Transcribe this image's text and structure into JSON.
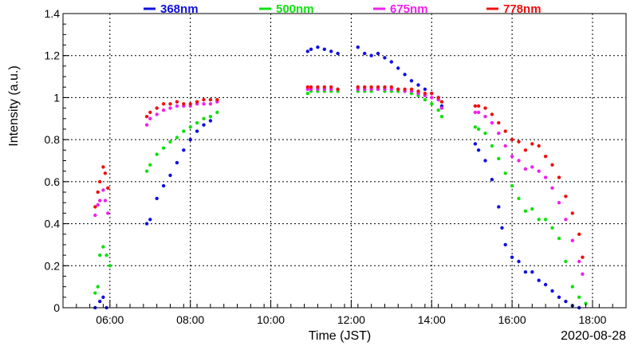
{
  "chart_data": {
    "type": "scatter",
    "title": "",
    "xlabel": "Time (JST)",
    "ylabel": "Intensity (a.u.)",
    "date_label": "2020-08-28",
    "xlim": [
      "04:50",
      "18:50"
    ],
    "ylim": [
      0,
      1.4
    ],
    "x_ticks": [
      "06:00",
      "08:00",
      "10:00",
      "12:00",
      "14:00",
      "16:00",
      "18:00"
    ],
    "y_ticks": [
      "0",
      "0.2",
      "0.4",
      "0.6",
      "0.8",
      "1",
      "1.2",
      "1.4"
    ],
    "grid": true,
    "legend_position": "top",
    "series": [
      {
        "name": "368nm",
        "color": "#1010e0",
        "points": [
          [
            "05:38",
            0.0
          ],
          [
            "05:45",
            0.03
          ],
          [
            "05:50",
            0.05
          ],
          [
            "05:55",
            0.0
          ],
          [
            "06:55",
            0.4
          ],
          [
            "07:00",
            0.42
          ],
          [
            "07:10",
            0.52
          ],
          [
            "07:20",
            0.58
          ],
          [
            "07:30",
            0.63
          ],
          [
            "07:40",
            0.69
          ],
          [
            "07:50",
            0.75
          ],
          [
            "08:00",
            0.8
          ],
          [
            "08:10",
            0.84
          ],
          [
            "08:20",
            0.87
          ],
          [
            "08:30",
            0.89
          ],
          [
            "10:55",
            1.22
          ],
          [
            "11:00",
            1.23
          ],
          [
            "11:10",
            1.24
          ],
          [
            "11:20",
            1.23
          ],
          [
            "11:30",
            1.22
          ],
          [
            "11:40",
            1.21
          ],
          [
            "12:10",
            1.24
          ],
          [
            "12:20",
            1.21
          ],
          [
            "12:30",
            1.2
          ],
          [
            "12:40",
            1.21
          ],
          [
            "12:50",
            1.19
          ],
          [
            "13:00",
            1.17
          ],
          [
            "13:10",
            1.14
          ],
          [
            "13:20",
            1.11
          ],
          [
            "13:30",
            1.08
          ],
          [
            "13:40",
            1.06
          ],
          [
            "13:50",
            1.04
          ],
          [
            "14:00",
            1.02
          ],
          [
            "14:10",
            1.0
          ],
          [
            "14:15",
            0.96
          ],
          [
            "15:05",
            0.78
          ],
          [
            "15:10",
            0.75
          ],
          [
            "15:20",
            0.7
          ],
          [
            "15:30",
            0.61
          ],
          [
            "15:40",
            0.48
          ],
          [
            "15:45",
            0.38
          ],
          [
            "15:50",
            0.3
          ],
          [
            "16:00",
            0.24
          ],
          [
            "16:10",
            0.22
          ],
          [
            "16:20",
            0.17
          ],
          [
            "16:30",
            0.17
          ],
          [
            "16:40",
            0.13
          ],
          [
            "16:50",
            0.11
          ],
          [
            "17:00",
            0.08
          ],
          [
            "17:10",
            0.05
          ],
          [
            "17:20",
            0.03
          ],
          [
            "17:30",
            0.01
          ],
          [
            "17:40",
            0.0
          ]
        ]
      },
      {
        "name": "500nm",
        "color": "#10e010",
        "points": [
          [
            "05:38",
            0.07
          ],
          [
            "05:42",
            0.1
          ],
          [
            "05:45",
            0.25
          ],
          [
            "05:50",
            0.29
          ],
          [
            "05:55",
            0.25
          ],
          [
            "06:00",
            0.2
          ],
          [
            "06:55",
            0.65
          ],
          [
            "07:00",
            0.68
          ],
          [
            "07:10",
            0.73
          ],
          [
            "07:20",
            0.76
          ],
          [
            "07:30",
            0.79
          ],
          [
            "07:40",
            0.81
          ],
          [
            "07:50",
            0.84
          ],
          [
            "08:00",
            0.86
          ],
          [
            "08:10",
            0.88
          ],
          [
            "08:20",
            0.9
          ],
          [
            "08:30",
            0.91
          ],
          [
            "08:40",
            0.93
          ],
          [
            "10:55",
            1.02
          ],
          [
            "11:00",
            1.03
          ],
          [
            "11:10",
            1.03
          ],
          [
            "11:20",
            1.03
          ],
          [
            "11:30",
            1.03
          ],
          [
            "11:40",
            1.03
          ],
          [
            "12:10",
            1.03
          ],
          [
            "12:20",
            1.03
          ],
          [
            "12:30",
            1.03
          ],
          [
            "12:40",
            1.04
          ],
          [
            "12:50",
            1.03
          ],
          [
            "13:00",
            1.03
          ],
          [
            "13:10",
            1.03
          ],
          [
            "13:20",
            1.03
          ],
          [
            "13:30",
            1.02
          ],
          [
            "13:40",
            1.01
          ],
          [
            "13:50",
            0.99
          ],
          [
            "14:00",
            0.97
          ],
          [
            "14:10",
            0.94
          ],
          [
            "14:15",
            0.91
          ],
          [
            "15:05",
            0.86
          ],
          [
            "15:10",
            0.85
          ],
          [
            "15:20",
            0.83
          ],
          [
            "15:30",
            0.77
          ],
          [
            "15:40",
            0.71
          ],
          [
            "15:50",
            0.64
          ],
          [
            "16:00",
            0.58
          ],
          [
            "16:10",
            0.52
          ],
          [
            "16:20",
            0.46
          ],
          [
            "16:30",
            0.47
          ],
          [
            "16:40",
            0.42
          ],
          [
            "16:50",
            0.42
          ],
          [
            "17:00",
            0.38
          ],
          [
            "17:10",
            0.33
          ],
          [
            "17:20",
            0.22
          ],
          [
            "17:30",
            0.1
          ],
          [
            "17:40",
            0.05
          ],
          [
            "17:50",
            0.02
          ]
        ]
      },
      {
        "name": "675nm",
        "color": "#f020f0",
        "points": [
          [
            "05:38",
            0.44
          ],
          [
            "05:42",
            0.49
          ],
          [
            "05:45",
            0.51
          ],
          [
            "05:50",
            0.56
          ],
          [
            "05:53",
            0.51
          ],
          [
            "05:57",
            0.45
          ],
          [
            "06:55",
            0.87
          ],
          [
            "07:00",
            0.9
          ],
          [
            "07:10",
            0.92
          ],
          [
            "07:20",
            0.94
          ],
          [
            "07:30",
            0.95
          ],
          [
            "07:40",
            0.96
          ],
          [
            "07:50",
            0.96
          ],
          [
            "08:00",
            0.96
          ],
          [
            "08:10",
            0.97
          ],
          [
            "08:20",
            0.97
          ],
          [
            "08:30",
            0.97
          ],
          [
            "08:40",
            0.98
          ],
          [
            "10:55",
            1.04
          ],
          [
            "11:00",
            1.04
          ],
          [
            "11:10",
            1.04
          ],
          [
            "11:20",
            1.04
          ],
          [
            "11:30",
            1.04
          ],
          [
            "11:40",
            1.04
          ],
          [
            "12:10",
            1.04
          ],
          [
            "12:20",
            1.04
          ],
          [
            "12:30",
            1.04
          ],
          [
            "12:40",
            1.04
          ],
          [
            "12:50",
            1.04
          ],
          [
            "13:00",
            1.04
          ],
          [
            "13:10",
            1.04
          ],
          [
            "13:20",
            1.03
          ],
          [
            "13:30",
            1.03
          ],
          [
            "13:40",
            1.02
          ],
          [
            "13:50",
            1.01
          ],
          [
            "14:00",
            1.0
          ],
          [
            "14:10",
            0.99
          ],
          [
            "14:15",
            0.95
          ],
          [
            "15:05",
            0.93
          ],
          [
            "15:10",
            0.93
          ],
          [
            "15:20",
            0.91
          ],
          [
            "15:30",
            0.88
          ],
          [
            "15:40",
            0.83
          ],
          [
            "15:50",
            0.77
          ],
          [
            "16:00",
            0.72
          ],
          [
            "16:10",
            0.7
          ],
          [
            "16:20",
            0.66
          ],
          [
            "16:30",
            0.67
          ],
          [
            "16:40",
            0.65
          ],
          [
            "16:50",
            0.62
          ],
          [
            "17:00",
            0.57
          ],
          [
            "17:10",
            0.5
          ],
          [
            "17:20",
            0.42
          ],
          [
            "17:30",
            0.32
          ],
          [
            "17:40",
            0.22
          ],
          [
            "17:45",
            0.16
          ]
        ]
      },
      {
        "name": "778nm",
        "color": "#f01010",
        "points": [
          [
            "05:38",
            0.48
          ],
          [
            "05:42",
            0.55
          ],
          [
            "05:45",
            0.6
          ],
          [
            "05:50",
            0.67
          ],
          [
            "05:53",
            0.64
          ],
          [
            "05:57",
            0.57
          ],
          [
            "06:55",
            0.91
          ],
          [
            "07:00",
            0.93
          ],
          [
            "07:10",
            0.95
          ],
          [
            "07:20",
            0.97
          ],
          [
            "07:30",
            0.97
          ],
          [
            "07:40",
            0.98
          ],
          [
            "07:50",
            0.97
          ],
          [
            "08:00",
            0.97
          ],
          [
            "08:10",
            0.98
          ],
          [
            "08:20",
            0.99
          ],
          [
            "08:30",
            0.99
          ],
          [
            "08:40",
            0.99
          ],
          [
            "10:55",
            1.05
          ],
          [
            "11:00",
            1.05
          ],
          [
            "11:10",
            1.05
          ],
          [
            "11:20",
            1.05
          ],
          [
            "11:30",
            1.05
          ],
          [
            "11:40",
            1.04
          ],
          [
            "12:10",
            1.05
          ],
          [
            "12:20",
            1.05
          ],
          [
            "12:30",
            1.05
          ],
          [
            "12:40",
            1.05
          ],
          [
            "12:50",
            1.05
          ],
          [
            "13:00",
            1.05
          ],
          [
            "13:10",
            1.04
          ],
          [
            "13:20",
            1.04
          ],
          [
            "13:30",
            1.04
          ],
          [
            "13:40",
            1.03
          ],
          [
            "13:50",
            1.02
          ],
          [
            "14:00",
            1.02
          ],
          [
            "14:10",
            1.0
          ],
          [
            "14:15",
            0.98
          ],
          [
            "15:05",
            0.96
          ],
          [
            "15:10",
            0.96
          ],
          [
            "15:20",
            0.95
          ],
          [
            "15:30",
            0.92
          ],
          [
            "15:40",
            0.88
          ],
          [
            "15:50",
            0.84
          ],
          [
            "16:00",
            0.8
          ],
          [
            "16:10",
            0.79
          ],
          [
            "16:20",
            0.75
          ],
          [
            "16:30",
            0.78
          ],
          [
            "16:40",
            0.77
          ],
          [
            "16:50",
            0.72
          ],
          [
            "17:00",
            0.68
          ],
          [
            "17:10",
            0.62
          ],
          [
            "17:20",
            0.53
          ],
          [
            "17:30",
            0.45
          ],
          [
            "17:40",
            0.35
          ],
          [
            "17:45",
            0.24
          ]
        ]
      }
    ]
  }
}
